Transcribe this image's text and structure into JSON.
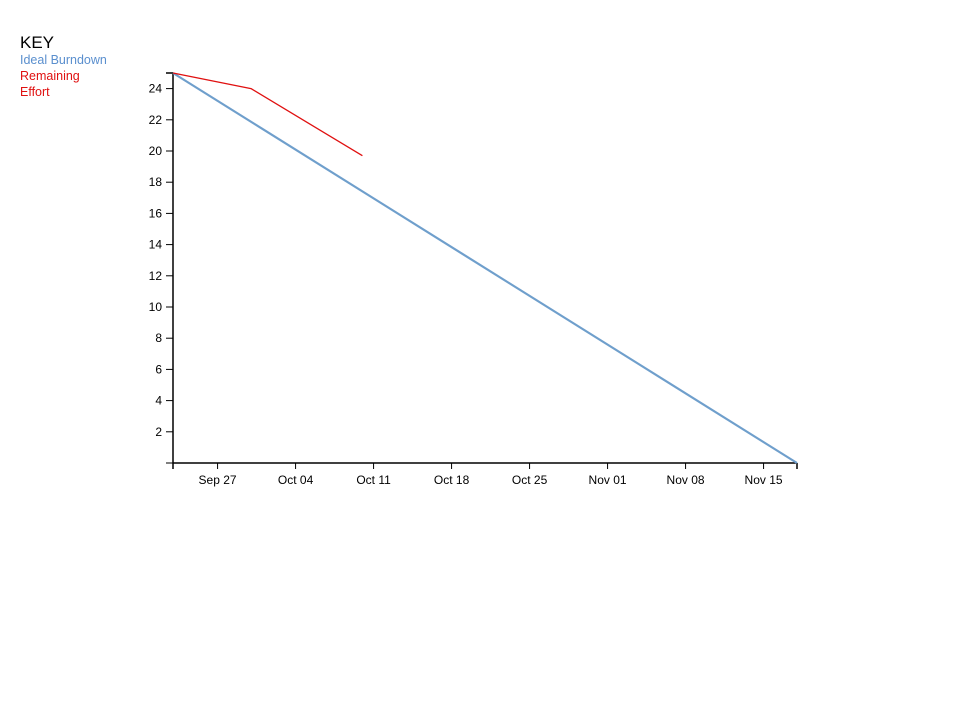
{
  "key": {
    "title": "KEY",
    "ideal_label": "Ideal Burndown",
    "remaining_label": "Remaining Effort"
  },
  "chart_data": {
    "type": "line",
    "title": "",
    "xlabel": "",
    "ylabel": "",
    "x_type": "date",
    "xlim": [
      "2023-09-23",
      "2023-11-18"
    ],
    "ylim": [
      0,
      25
    ],
    "x_ticks": [
      {
        "date": "2023-09-27",
        "label": "Sep 27"
      },
      {
        "date": "2023-10-04",
        "label": "Oct 04"
      },
      {
        "date": "2023-10-11",
        "label": "Oct 11"
      },
      {
        "date": "2023-10-18",
        "label": "Oct 18"
      },
      {
        "date": "2023-10-25",
        "label": "Oct 25"
      },
      {
        "date": "2023-11-01",
        "label": "Nov 01"
      },
      {
        "date": "2023-11-08",
        "label": "Nov 08"
      },
      {
        "date": "2023-11-15",
        "label": "Nov 15"
      }
    ],
    "y_ticks": [
      2,
      4,
      6,
      8,
      10,
      12,
      14,
      16,
      18,
      20,
      22,
      24
    ],
    "grid": false,
    "legend_position": "top-left",
    "series": [
      {
        "name": "Ideal Burndown",
        "color": "#6f9fcc",
        "points": [
          {
            "x": "2023-09-23",
            "y": 25
          },
          {
            "x": "2023-11-18",
            "y": 0
          }
        ]
      },
      {
        "name": "Remaining Effort",
        "color": "#e01010",
        "points": [
          {
            "x": "2023-09-23",
            "y": 25
          },
          {
            "x": "2023-09-30",
            "y": 24
          },
          {
            "x": "2023-10-10",
            "y": 19.7
          }
        ]
      }
    ]
  }
}
